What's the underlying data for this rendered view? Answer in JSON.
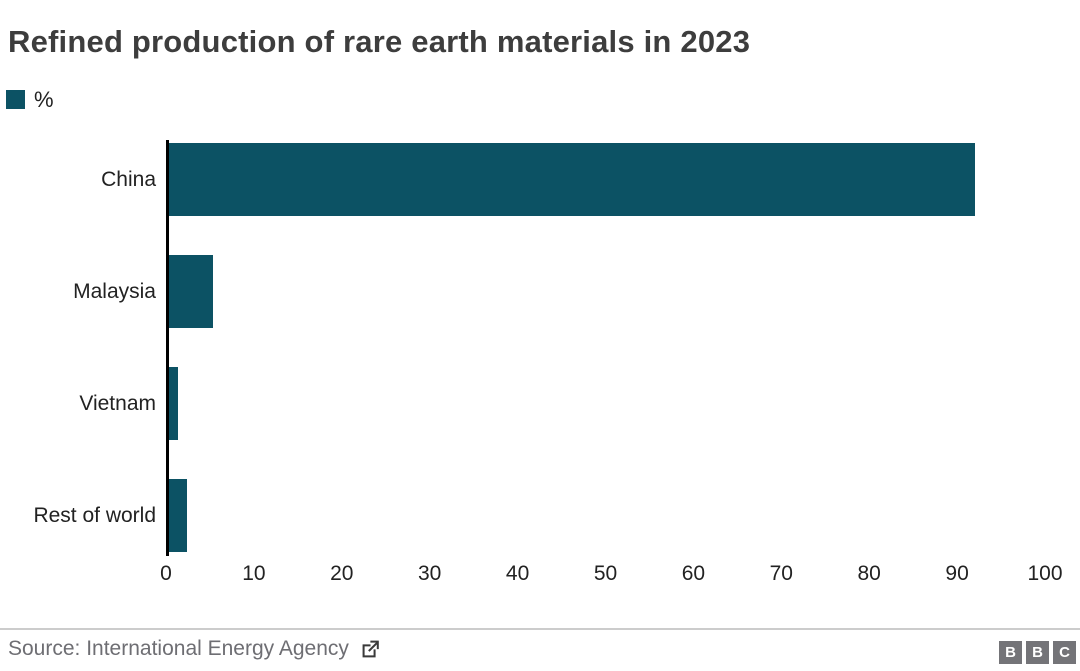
{
  "title": "Refined production of rare earth materials in 2023",
  "legend": {
    "label": "%",
    "swatch_color": "#0c5264"
  },
  "chart_data": {
    "type": "bar",
    "orientation": "horizontal",
    "title": "Refined production of rare earth materials in 2023",
    "categories": [
      "China",
      "Malaysia",
      "Vietnam",
      "Rest of world"
    ],
    "values": [
      92,
      5,
      1,
      2
    ],
    "unit": "%",
    "xlabel": "",
    "ylabel": "",
    "xlim": [
      0,
      100
    ],
    "xticks": [
      0,
      10,
      20,
      30,
      40,
      50,
      60,
      70,
      80,
      90,
      100
    ],
    "grid": false,
    "legend_position": "top-left",
    "bar_color": "#0c5264"
  },
  "footer": {
    "source_label": "Source: International Energy Agency",
    "external_link_icon": "box-arrow-up-right",
    "logo_letters": [
      "B",
      "B",
      "C"
    ]
  },
  "colors": {
    "bar": "#0c5264",
    "title_text": "#3d3d3d",
    "axis_line": "#000000",
    "tick_text": "#222222",
    "category_text": "#222222",
    "source_text": "#6e6e73",
    "divider": "#cccccc",
    "logo_block": "#747478",
    "logo_letter": "#ffffff",
    "background": "#ffffff"
  }
}
